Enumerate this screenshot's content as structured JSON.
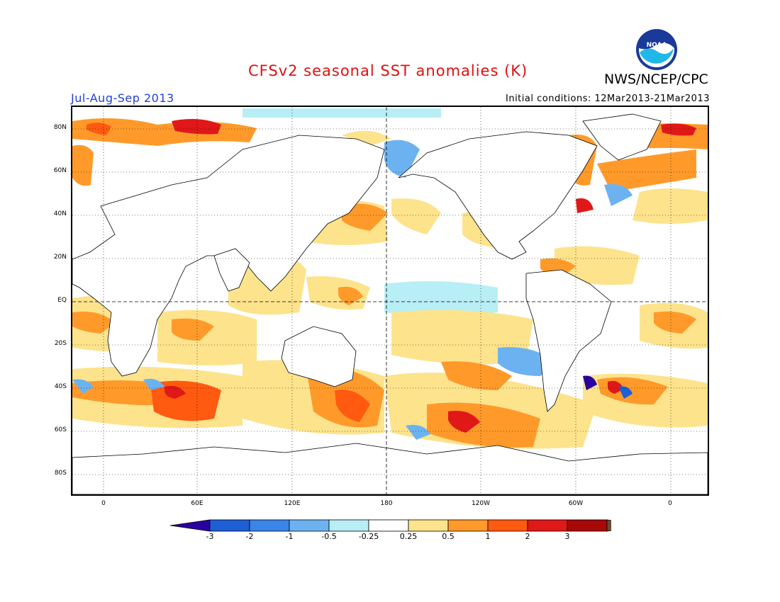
{
  "title": "CFSv2 seasonal SST anomalies (K)",
  "organization": "NWS/NCEP/CPC",
  "logo_text": "NOAA",
  "period": "Jul-Aug-Sep 2013",
  "initial_conditions": "Initial conditions: 12Mar2013-21Mar2013",
  "lat_labels": [
    "80N",
    "60N",
    "40N",
    "20N",
    "EQ",
    "20S",
    "40S",
    "60S",
    "80S"
  ],
  "lon_labels": [
    "0",
    "60E",
    "120E",
    "180",
    "120W",
    "60W",
    "0"
  ],
  "colorbar": {
    "labels": [
      "-3",
      "-2",
      "-1",
      "-0.5",
      "-0.25",
      "0.25",
      "0.5",
      "1",
      "2",
      "3"
    ],
    "colors": [
      "#2a00a0",
      "#1f5fd6",
      "#3a85e8",
      "#6db2f0",
      "#b8eef5",
      "#ffffff",
      "#fde38c",
      "#ff9a2a",
      "#ff5a10",
      "#e01818",
      "#a80808",
      "#6b4a3a"
    ]
  },
  "map": {
    "land_color": "#ffffff",
    "graticule": "dotted",
    "dashed_lines": [
      "EQ",
      "180"
    ]
  }
}
